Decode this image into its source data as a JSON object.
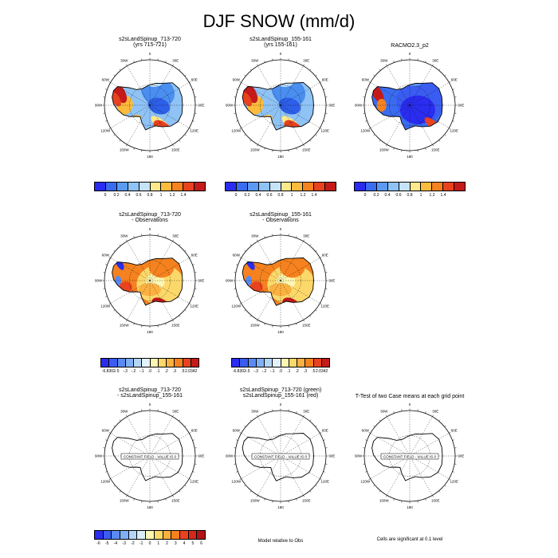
{
  "title": "DJF SNOW (mm/d)",
  "longitude_labels": [
    "0",
    "30E",
    "60E",
    "90E",
    "120E",
    "150E",
    "180",
    "150W",
    "120W",
    "90W",
    "60W",
    "30W"
  ],
  "panels": [
    {
      "id": "p1",
      "title_lines": [
        "s2sLandSpinup_713-720",
        "(yrs 715-721)"
      ],
      "kind": "mean",
      "variant": 0
    },
    {
      "id": "p2",
      "title_lines": [
        "s2sLandSpinup_155-161",
        "(yrs 155-161)"
      ],
      "kind": "mean",
      "variant": 1
    },
    {
      "id": "p3",
      "title_lines": [
        "RACMO2.3_p2"
      ],
      "kind": "obs",
      "variant": 2
    },
    {
      "id": "p4",
      "title_lines": [
        "s2sLandSpinup_713-720",
        "- Observations"
      ],
      "kind": "diff",
      "variant": 0
    },
    {
      "id": "p5",
      "title_lines": [
        "s2sLandSpinup_155-161",
        "- Observations"
      ],
      "kind": "diff",
      "variant": 1
    },
    {
      "id": "p6",
      "title_lines": [
        "s2sLandSpinup_713-720",
        "- s2sLandSpinup_155-161"
      ],
      "kind": "blank",
      "variant": 0
    },
    {
      "id": "p7",
      "title_lines": [
        "s2sLandSpinup_713-720 (green)",
        "s2sLandSpinup_155-161 (red)"
      ],
      "kind": "blank",
      "variant": 1
    },
    {
      "id": "p8",
      "title_lines": [
        "T-Test of two Case means at each grid point"
      ],
      "kind": "blank",
      "variant": 2
    }
  ],
  "constant_field_text": "CONSTANT FIELD - VALUE IS 0",
  "colorbars": {
    "mean": {
      "colors": [
        "#2a2cf0",
        "#3a6cf0",
        "#5a9af2",
        "#8fc3f5",
        "#c6e3f7",
        "#fde88a",
        "#fbbb3c",
        "#f5821f",
        "#e8421f",
        "#c41a1a"
      ],
      "labels": [
        "0",
        "0.2",
        "0.4",
        "0.6",
        "0.8",
        "1",
        "1.2",
        "1.4"
      ],
      "label_positions": [
        1,
        2,
        3,
        4,
        5,
        6,
        7,
        8
      ]
    },
    "diff": {
      "colors": [
        "#2a2cf0",
        "#3a5cf0",
        "#5a8af2",
        "#7fb0f5",
        "#b3d6f7",
        "#e3f1fa",
        "#fdf6b0",
        "#fcd86a",
        "#fbb040",
        "#f5821f",
        "#e8421f",
        "#c41a1a"
      ],
      "labels": [
        "-6.8302",
        "-.5",
        "-.3",
        "-.2",
        "-.1",
        ".0",
        ".1",
        ".2",
        ".3",
        ".5",
        "2.0342"
      ],
      "label_positions": [
        1,
        2,
        3,
        4,
        5,
        6,
        7,
        8,
        9,
        10,
        11
      ]
    },
    "bottom": {
      "colors": [
        "#2a2cf0",
        "#3a5cf0",
        "#5a8af2",
        "#7fb0f5",
        "#b3d6f7",
        "#d9ecf8",
        "#fdf6b0",
        "#fcd86a",
        "#fbb040",
        "#f5821f",
        "#e8421f",
        "#d22a1a",
        "#b01414"
      ],
      "labels": [
        "-6",
        "-5",
        "-4",
        "-3",
        "-2",
        "-1",
        "0",
        "1",
        "2",
        "3",
        "4",
        "5",
        "6"
      ],
      "label_positions": [
        0.5,
        1.5,
        2.5,
        3.5,
        4.5,
        5.5,
        6.5,
        7.5,
        8.5,
        9.5,
        10.5,
        11.5,
        12.5
      ]
    }
  },
  "footnotes": {
    "model_relative": "Model relative to Obs",
    "significance": "Cells are significant at 0.1 level"
  }
}
